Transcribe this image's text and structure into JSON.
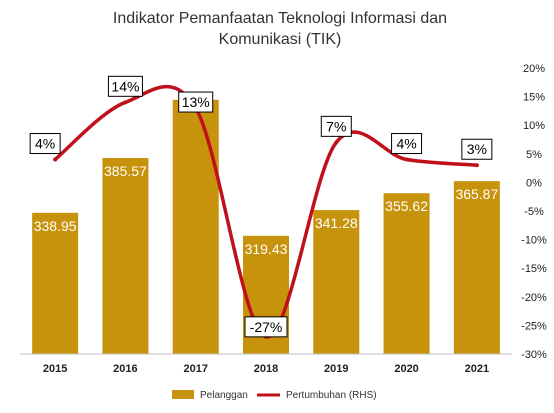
{
  "chart_data": {
    "type": "bar",
    "title_line1": "Indikator Pemanfaatan Teknologi Informasi dan",
    "title_line2": "Komunikasi (TIK)",
    "categories": [
      "2015",
      "2016",
      "2017",
      "2018",
      "2019",
      "2020",
      "2021"
    ],
    "series": [
      {
        "name": "Pelanggan",
        "type": "bar",
        "color": "#c8930c",
        "values": [
          338.95,
          385.57,
          435.0,
          319.43,
          341.28,
          355.62,
          365.87
        ],
        "labels": [
          "338.95",
          "385.57",
          "",
          "319.43",
          "341.28",
          "355.62",
          "365.87"
        ]
      },
      {
        "name": "Pertumbuhan (RHS)",
        "type": "line",
        "axis": "right",
        "color": "#c0101a",
        "values": [
          4,
          14,
          13,
          -27,
          7,
          4,
          3
        ],
        "labels": [
          "4%",
          "14%",
          "13%",
          "-27%",
          "7%",
          "4%",
          "3%"
        ]
      }
    ],
    "left_axis": {
      "shown": false,
      "ylim": [
        219,
        462
      ]
    },
    "right_axis": {
      "ylim": [
        -30,
        20
      ],
      "ticks": [
        "20%",
        "15%",
        "10%",
        "5%",
        "0%",
        "-5%",
        "-10%",
        "-15%",
        "-20%",
        "-25%",
        "-30%"
      ]
    },
    "grid": false,
    "legend_position": "bottom"
  }
}
